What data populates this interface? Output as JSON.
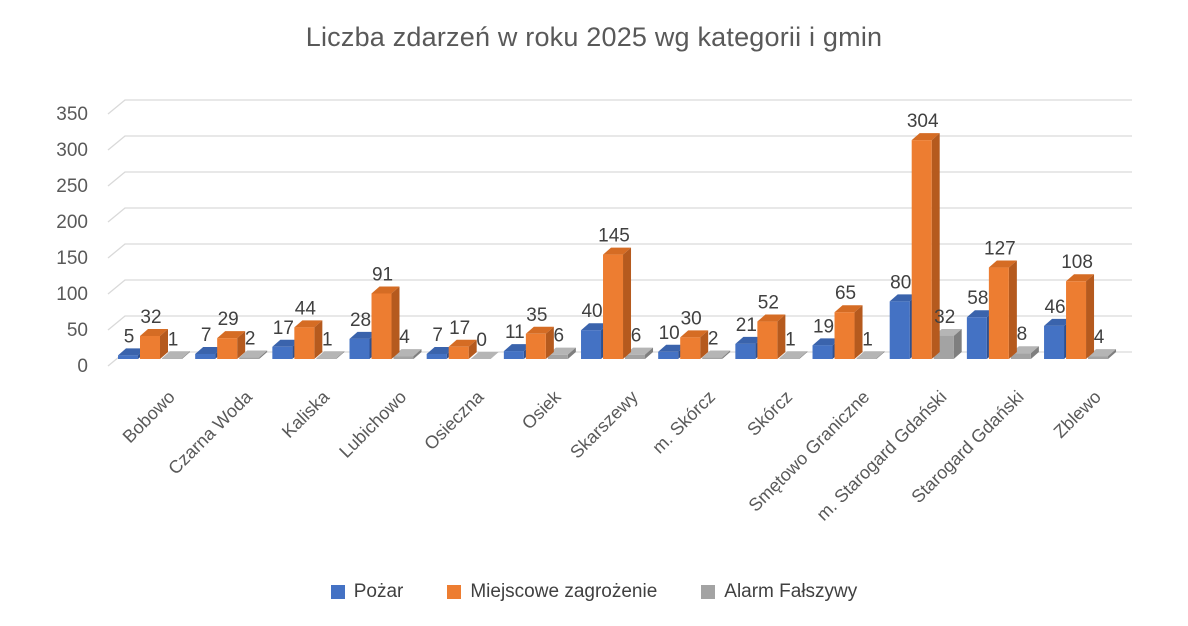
{
  "title": "Liczba zdarzeń w roku 2025 wg kategorii i gmin",
  "chart_data": {
    "type": "bar",
    "subtype": "3d-clustered-column",
    "title": "Liczba zdarzeń w roku 2025 wg kategorii i gmin",
    "categories": [
      "Bobowo",
      "Czarna Woda",
      "Kaliska",
      "Lubichowo",
      "Osieczna",
      "Osiek",
      "Skarszewy",
      "m. Skórcz",
      "Skórcz",
      "Smętowo Graniczne",
      "m. Starogard Gdański",
      "Starogard Gdański",
      "Zblewo"
    ],
    "series": [
      {
        "name": "Pożar",
        "color": "#4472C4",
        "color_top": "#3A63AC",
        "color_side": "#2E5090",
        "values": [
          5,
          7,
          17,
          28,
          7,
          11,
          40,
          10,
          21,
          19,
          80,
          58,
          46
        ]
      },
      {
        "name": "Miejscowe zagrożenie",
        "color": "#ED7D31",
        "color_top": "#D56C24",
        "color_side": "#B55A1E",
        "values": [
          32,
          29,
          44,
          91,
          17,
          35,
          145,
          30,
          52,
          65,
          304,
          127,
          108
        ]
      },
      {
        "name": "Alarm Fałszywy",
        "color": "#A3A3A3",
        "color_top": "#B5B5B5",
        "color_side": "#7F7F7F",
        "values": [
          1,
          2,
          1,
          4,
          0,
          6,
          6,
          2,
          1,
          1,
          32,
          8,
          4
        ]
      }
    ],
    "y_ticks": [
      0,
      50,
      100,
      150,
      200,
      250,
      300,
      350
    ],
    "ylim": [
      0,
      350
    ],
    "xlabel": "",
    "ylabel": "",
    "grid": true,
    "gridline_color": "#D9D9D9",
    "data_labels": true,
    "label_color": "#404040",
    "axis_text_color": "#595959",
    "title_color": "#595959",
    "legend_position": "bottom"
  }
}
